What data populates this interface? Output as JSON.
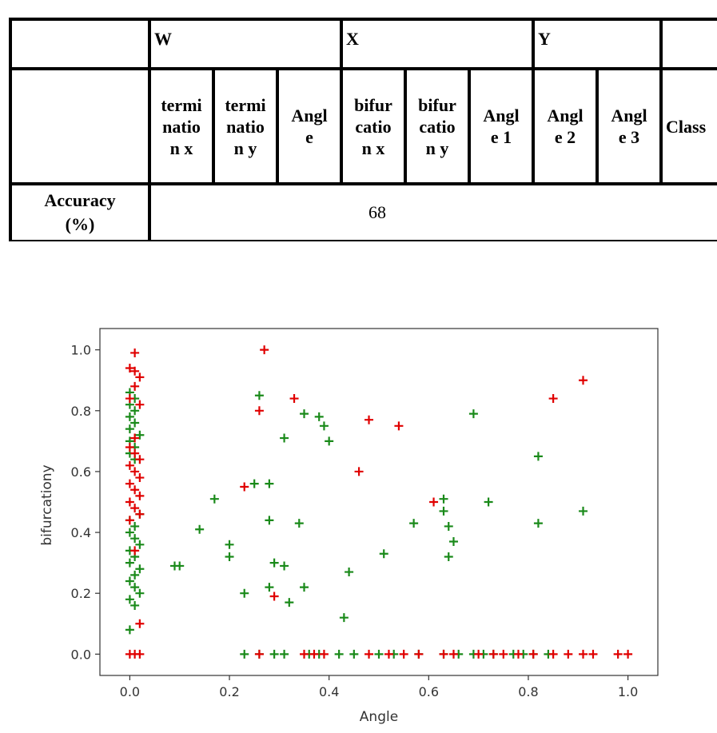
{
  "table": {
    "group_headers": [
      "",
      "W",
      "X",
      "Y",
      ""
    ],
    "feature_headers": [
      "",
      "termi\nnatio\nn x",
      "termi\nnatio\nn y",
      "Angl\ne",
      "bifur\ncatio\nn x",
      "bifur\ncatio\nn y",
      "Angl\ne 1",
      "Angl\ne 2",
      "Angl\ne 3",
      "Class"
    ],
    "accuracy_label": "Accuracy\n(%)",
    "accuracy_value": "68"
  },
  "chart_data": {
    "type": "scatter",
    "xlabel": "Angle",
    "ylabel": "bifurcationy",
    "xlim": [
      -0.06,
      1.06
    ],
    "ylim": [
      -0.07,
      1.07
    ],
    "xticks": [
      "0.0",
      "0.2",
      "0.4",
      "0.6",
      "0.8",
      "1.0"
    ],
    "yticks": [
      "0.0",
      "0.2",
      "0.4",
      "0.6",
      "0.8",
      "1.0"
    ],
    "marker": "plus",
    "grid": false,
    "series": [
      {
        "color": "#1a8a1a",
        "points": [
          [
            0.0,
            0.86
          ],
          [
            0.01,
            0.84
          ],
          [
            0.0,
            0.82
          ],
          [
            0.01,
            0.8
          ],
          [
            0.0,
            0.78
          ],
          [
            0.01,
            0.76
          ],
          [
            0.0,
            0.74
          ],
          [
            0.02,
            0.72
          ],
          [
            0.0,
            0.7
          ],
          [
            0.01,
            0.68
          ],
          [
            0.0,
            0.66
          ],
          [
            0.01,
            0.64
          ],
          [
            0.0,
            0.4
          ],
          [
            0.01,
            0.38
          ],
          [
            0.02,
            0.36
          ],
          [
            0.0,
            0.34
          ],
          [
            0.01,
            0.32
          ],
          [
            0.0,
            0.3
          ],
          [
            0.02,
            0.28
          ],
          [
            0.01,
            0.26
          ],
          [
            0.0,
            0.24
          ],
          [
            0.01,
            0.22
          ],
          [
            0.02,
            0.2
          ],
          [
            0.0,
            0.18
          ],
          [
            0.01,
            0.16
          ],
          [
            0.0,
            0.08
          ],
          [
            0.01,
            0.42
          ],
          [
            0.0,
            0.44
          ],
          [
            0.02,
            0.46
          ],
          [
            0.09,
            0.29
          ],
          [
            0.1,
            0.29
          ],
          [
            0.14,
            0.41
          ],
          [
            0.17,
            0.51
          ],
          [
            0.2,
            0.36
          ],
          [
            0.2,
            0.32
          ],
          [
            0.23,
            0.2
          ],
          [
            0.25,
            0.56
          ],
          [
            0.26,
            0.85
          ],
          [
            0.28,
            0.56
          ],
          [
            0.28,
            0.44
          ],
          [
            0.28,
            0.22
          ],
          [
            0.29,
            0.3
          ],
          [
            0.31,
            0.29
          ],
          [
            0.31,
            0.71
          ],
          [
            0.32,
            0.17
          ],
          [
            0.34,
            0.43
          ],
          [
            0.35,
            0.22
          ],
          [
            0.35,
            0.79
          ],
          [
            0.38,
            0.78
          ],
          [
            0.39,
            0.75
          ],
          [
            0.4,
            0.7
          ],
          [
            0.43,
            0.12
          ],
          [
            0.44,
            0.27
          ],
          [
            0.51,
            0.33
          ],
          [
            0.57,
            0.43
          ],
          [
            0.63,
            0.51
          ],
          [
            0.63,
            0.47
          ],
          [
            0.64,
            0.42
          ],
          [
            0.65,
            0.37
          ],
          [
            0.64,
            0.32
          ],
          [
            0.69,
            0.79
          ],
          [
            0.72,
            0.5
          ],
          [
            0.82,
            0.65
          ],
          [
            0.82,
            0.43
          ],
          [
            0.91,
            0.47
          ],
          [
            0.23,
            0.0
          ],
          [
            0.26,
            0.0
          ],
          [
            0.29,
            0.0
          ],
          [
            0.31,
            0.0
          ],
          [
            0.36,
            0.0
          ],
          [
            0.38,
            0.0
          ],
          [
            0.42,
            0.0
          ],
          [
            0.45,
            0.0
          ],
          [
            0.5,
            0.0
          ],
          [
            0.53,
            0.0
          ],
          [
            0.58,
            0.0
          ],
          [
            0.63,
            0.0
          ],
          [
            0.66,
            0.0
          ],
          [
            0.69,
            0.0
          ],
          [
            0.71,
            0.0
          ],
          [
            0.73,
            0.0
          ],
          [
            0.77,
            0.0
          ],
          [
            0.79,
            0.0
          ],
          [
            0.81,
            0.0
          ],
          [
            0.84,
            0.0
          ]
        ]
      },
      {
        "color": "#e00000",
        "points": [
          [
            0.01,
            0.99
          ],
          [
            0.0,
            0.94
          ],
          [
            0.01,
            0.93
          ],
          [
            0.02,
            0.91
          ],
          [
            0.01,
            0.88
          ],
          [
            0.0,
            0.84
          ],
          [
            0.02,
            0.82
          ],
          [
            0.01,
            0.71
          ],
          [
            0.0,
            0.68
          ],
          [
            0.01,
            0.66
          ],
          [
            0.02,
            0.64
          ],
          [
            0.0,
            0.62
          ],
          [
            0.01,
            0.6
          ],
          [
            0.02,
            0.58
          ],
          [
            0.0,
            0.56
          ],
          [
            0.01,
            0.54
          ],
          [
            0.02,
            0.52
          ],
          [
            0.0,
            0.5
          ],
          [
            0.01,
            0.48
          ],
          [
            0.02,
            0.46
          ],
          [
            0.0,
            0.44
          ],
          [
            0.01,
            0.34
          ],
          [
            0.02,
            0.1
          ],
          [
            0.0,
            0.0
          ],
          [
            0.01,
            0.0
          ],
          [
            0.02,
            0.0
          ],
          [
            0.27,
            1.0
          ],
          [
            0.26,
            0.8
          ],
          [
            0.23,
            0.55
          ],
          [
            0.29,
            0.19
          ],
          [
            0.33,
            0.84
          ],
          [
            0.46,
            0.6
          ],
          [
            0.48,
            0.77
          ],
          [
            0.54,
            0.75
          ],
          [
            0.61,
            0.5
          ],
          [
            0.85,
            0.84
          ],
          [
            0.91,
            0.9
          ],
          [
            0.26,
            0.0
          ],
          [
            0.35,
            0.0
          ],
          [
            0.37,
            0.0
          ],
          [
            0.39,
            0.0
          ],
          [
            0.48,
            0.0
          ],
          [
            0.52,
            0.0
          ],
          [
            0.55,
            0.0
          ],
          [
            0.58,
            0.0
          ],
          [
            0.63,
            0.0
          ],
          [
            0.65,
            0.0
          ],
          [
            0.7,
            0.0
          ],
          [
            0.73,
            0.0
          ],
          [
            0.75,
            0.0
          ],
          [
            0.78,
            0.0
          ],
          [
            0.81,
            0.0
          ],
          [
            0.85,
            0.0
          ],
          [
            0.88,
            0.0
          ],
          [
            0.91,
            0.0
          ],
          [
            0.93,
            0.0
          ],
          [
            0.98,
            0.0
          ],
          [
            1.0,
            0.0
          ]
        ]
      }
    ]
  }
}
